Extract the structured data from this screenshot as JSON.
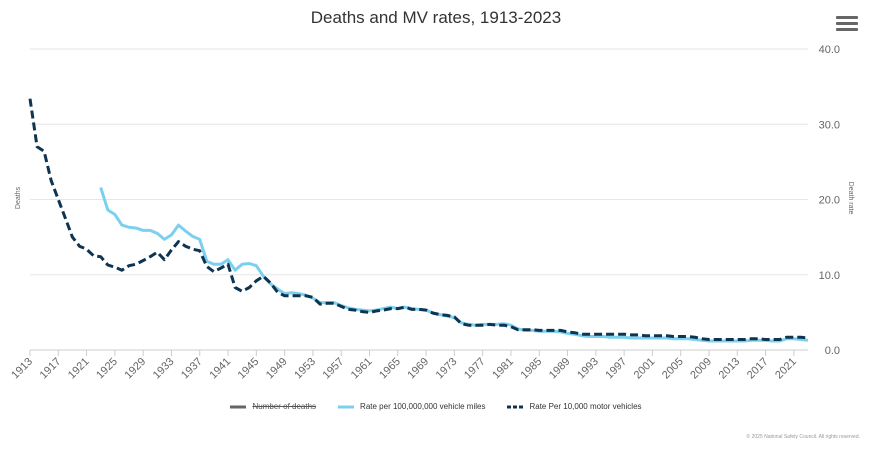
{
  "chart_data": {
    "type": "line",
    "title": "Deaths and MV rates, 1913-2023",
    "xlabel": "",
    "ylabel_left": "Deaths",
    "ylabel_right": "Death rate",
    "x_range": [
      1913,
      2023
    ],
    "y_right_range": [
      0,
      40
    ],
    "y_right_ticks": [
      "0.0",
      "10.0",
      "20.0",
      "30.0",
      "40.0"
    ],
    "x_tick_labels": [
      "1913",
      "1917",
      "1921",
      "1925",
      "1929",
      "1933",
      "1937",
      "1941",
      "1945",
      "1949",
      "1953",
      "1957",
      "1961",
      "1965",
      "1969",
      "1973",
      "1977",
      "1981",
      "1985",
      "1989",
      "1993",
      "1997",
      "2001",
      "2005",
      "2009",
      "2013",
      "2017",
      "2021"
    ],
    "series": [
      {
        "name": "Number of deaths",
        "visible": false,
        "color": "#666666",
        "points": []
      },
      {
        "name": "Rate per 100,000,000 vehicle miles",
        "visible": true,
        "color": "#7cd0ef",
        "dash": "solid",
        "points": [
          [
            1923,
            21.6
          ],
          [
            1924,
            18.6
          ],
          [
            1925,
            18.0
          ],
          [
            1926,
            16.6
          ],
          [
            1927,
            16.3
          ],
          [
            1928,
            16.2
          ],
          [
            1929,
            15.9
          ],
          [
            1930,
            15.9
          ],
          [
            1931,
            15.5
          ],
          [
            1932,
            14.7
          ],
          [
            1933,
            15.3
          ],
          [
            1934,
            16.6
          ],
          [
            1935,
            15.8
          ],
          [
            1936,
            15.1
          ],
          [
            1937,
            14.7
          ],
          [
            1938,
            11.8
          ],
          [
            1939,
            11.4
          ],
          [
            1940,
            11.4
          ],
          [
            1941,
            12.0
          ],
          [
            1942,
            10.6
          ],
          [
            1943,
            11.4
          ],
          [
            1944,
            11.5
          ],
          [
            1945,
            11.2
          ],
          [
            1946,
            9.8
          ],
          [
            1947,
            8.8
          ],
          [
            1948,
            8.1
          ],
          [
            1949,
            7.5
          ],
          [
            1950,
            7.6
          ],
          [
            1951,
            7.5
          ],
          [
            1952,
            7.3
          ],
          [
            1953,
            6.9
          ],
          [
            1954,
            6.3
          ],
          [
            1955,
            6.3
          ],
          [
            1956,
            6.3
          ],
          [
            1957,
            5.9
          ],
          [
            1958,
            5.6
          ],
          [
            1959,
            5.4
          ],
          [
            1960,
            5.3
          ],
          [
            1961,
            5.2
          ],
          [
            1962,
            5.3
          ],
          [
            1963,
            5.5
          ],
          [
            1964,
            5.7
          ],
          [
            1965,
            5.5
          ],
          [
            1966,
            5.7
          ],
          [
            1967,
            5.5
          ],
          [
            1968,
            5.4
          ],
          [
            1969,
            5.3
          ],
          [
            1970,
            4.9
          ],
          [
            1971,
            4.7
          ],
          [
            1972,
            4.5
          ],
          [
            1973,
            4.3
          ],
          [
            1974,
            3.6
          ],
          [
            1975,
            3.4
          ],
          [
            1976,
            3.3
          ],
          [
            1977,
            3.4
          ],
          [
            1978,
            3.4
          ],
          [
            1979,
            3.4
          ],
          [
            1980,
            3.5
          ],
          [
            1981,
            3.3
          ],
          [
            1982,
            2.8
          ],
          [
            1983,
            2.6
          ],
          [
            1984,
            2.6
          ],
          [
            1985,
            2.5
          ],
          [
            1986,
            2.5
          ],
          [
            1987,
            2.5
          ],
          [
            1988,
            2.4
          ],
          [
            1989,
            2.2
          ],
          [
            1990,
            2.1
          ],
          [
            1991,
            1.9
          ],
          [
            1992,
            1.8
          ],
          [
            1993,
            1.8
          ],
          [
            1994,
            1.8
          ],
          [
            1995,
            1.7
          ],
          [
            1996,
            1.7
          ],
          [
            1997,
            1.7
          ],
          [
            1998,
            1.6
          ],
          [
            1999,
            1.6
          ],
          [
            2000,
            1.6
          ],
          [
            2001,
            1.6
          ],
          [
            2002,
            1.6
          ],
          [
            2003,
            1.6
          ],
          [
            2004,
            1.5
          ],
          [
            2005,
            1.5
          ],
          [
            2006,
            1.5
          ],
          [
            2007,
            1.4
          ],
          [
            2008,
            1.3
          ],
          [
            2009,
            1.2
          ],
          [
            2010,
            1.2
          ],
          [
            2011,
            1.2
          ],
          [
            2012,
            1.2
          ],
          [
            2013,
            1.2
          ],
          [
            2014,
            1.2
          ],
          [
            2015,
            1.3
          ],
          [
            2016,
            1.3
          ],
          [
            2017,
            1.3
          ],
          [
            2018,
            1.2
          ],
          [
            2019,
            1.2
          ],
          [
            2020,
            1.5
          ],
          [
            2021,
            1.5
          ],
          [
            2022,
            1.4
          ],
          [
            2023,
            1.3
          ]
        ]
      },
      {
        "name": "Rate Per 10,000 motor vehicles",
        "visible": true,
        "color": "#0d3451",
        "dash": "dashed",
        "points": [
          [
            1913,
            33.4
          ],
          [
            1914,
            27.0
          ],
          [
            1915,
            26.4
          ],
          [
            1916,
            22.5
          ],
          [
            1917,
            20.0
          ],
          [
            1918,
            17.5
          ],
          [
            1919,
            15.0
          ],
          [
            1920,
            13.8
          ],
          [
            1921,
            13.4
          ],
          [
            1922,
            12.5
          ],
          [
            1923,
            12.4
          ],
          [
            1924,
            11.3
          ],
          [
            1925,
            11.0
          ],
          [
            1926,
            10.6
          ],
          [
            1927,
            11.2
          ],
          [
            1928,
            11.4
          ],
          [
            1929,
            11.9
          ],
          [
            1930,
            12.4
          ],
          [
            1931,
            13.0
          ],
          [
            1932,
            12.0
          ],
          [
            1933,
            13.3
          ],
          [
            1934,
            14.4
          ],
          [
            1935,
            13.8
          ],
          [
            1936,
            13.4
          ],
          [
            1937,
            13.2
          ],
          [
            1938,
            11.1
          ],
          [
            1939,
            10.4
          ],
          [
            1940,
            10.9
          ],
          [
            1941,
            11.4
          ],
          [
            1942,
            8.3
          ],
          [
            1943,
            7.8
          ],
          [
            1944,
            8.3
          ],
          [
            1945,
            9.2
          ],
          [
            1946,
            9.8
          ],
          [
            1947,
            8.9
          ],
          [
            1948,
            7.7
          ],
          [
            1949,
            7.2
          ],
          [
            1950,
            7.2
          ],
          [
            1951,
            7.2
          ],
          [
            1952,
            7.2
          ],
          [
            1953,
            7.0
          ],
          [
            1954,
            6.1
          ],
          [
            1955,
            6.2
          ],
          [
            1956,
            6.2
          ],
          [
            1957,
            5.8
          ],
          [
            1958,
            5.4
          ],
          [
            1959,
            5.3
          ],
          [
            1960,
            5.1
          ],
          [
            1961,
            5.0
          ],
          [
            1962,
            5.2
          ],
          [
            1963,
            5.3
          ],
          [
            1964,
            5.5
          ],
          [
            1965,
            5.5
          ],
          [
            1966,
            5.7
          ],
          [
            1967,
            5.4
          ],
          [
            1968,
            5.4
          ],
          [
            1969,
            5.3
          ],
          [
            1970,
            4.9
          ],
          [
            1971,
            4.7
          ],
          [
            1972,
            4.6
          ],
          [
            1973,
            4.4
          ],
          [
            1974,
            3.5
          ],
          [
            1975,
            3.3
          ],
          [
            1976,
            3.3
          ],
          [
            1977,
            3.3
          ],
          [
            1978,
            3.4
          ],
          [
            1979,
            3.3
          ],
          [
            1980,
            3.3
          ],
          [
            1981,
            3.1
          ],
          [
            1982,
            2.7
          ],
          [
            1983,
            2.7
          ],
          [
            1984,
            2.7
          ],
          [
            1985,
            2.6
          ],
          [
            1986,
            2.6
          ],
          [
            1987,
            2.6
          ],
          [
            1988,
            2.6
          ],
          [
            1989,
            2.4
          ],
          [
            1990,
            2.3
          ],
          [
            1991,
            2.1
          ],
          [
            1992,
            2.1
          ],
          [
            1993,
            2.1
          ],
          [
            1994,
            2.1
          ],
          [
            1995,
            2.1
          ],
          [
            1996,
            2.1
          ],
          [
            1997,
            2.1
          ],
          [
            1998,
            2.0
          ],
          [
            1999,
            2.0
          ],
          [
            2000,
            1.9
          ],
          [
            2001,
            1.9
          ],
          [
            2002,
            1.9
          ],
          [
            2003,
            1.9
          ],
          [
            2004,
            1.8
          ],
          [
            2005,
            1.8
          ],
          [
            2006,
            1.8
          ],
          [
            2007,
            1.7
          ],
          [
            2008,
            1.5
          ],
          [
            2009,
            1.4
          ],
          [
            2010,
            1.4
          ],
          [
            2011,
            1.4
          ],
          [
            2012,
            1.4
          ],
          [
            2013,
            1.4
          ],
          [
            2014,
            1.4
          ],
          [
            2015,
            1.5
          ],
          [
            2016,
            1.5
          ],
          [
            2017,
            1.4
          ],
          [
            2018,
            1.4
          ],
          [
            2019,
            1.4
          ],
          [
            2020,
            1.7
          ],
          [
            2021,
            1.7
          ],
          [
            2022,
            1.7
          ],
          [
            2023,
            1.6
          ]
        ]
      }
    ]
  },
  "credits": "© 2025 National Safety Council. All rights reserved."
}
